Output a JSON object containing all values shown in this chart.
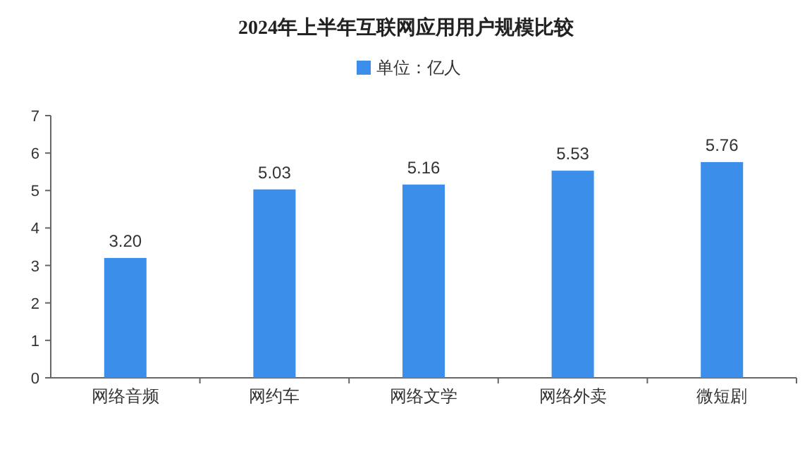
{
  "chart_data": {
    "type": "bar",
    "title": "2024年上半年互联网应用用户规模比较",
    "categories": [
      "网络音频",
      "网约车",
      "网络文学",
      "网络外卖",
      "微短剧"
    ],
    "series": [
      {
        "name": "单位：亿人",
        "color": "#3b8eea",
        "values": [
          3.2,
          5.03,
          5.16,
          5.53,
          5.76
        ],
        "value_labels": [
          "3.20",
          "5.03",
          "5.16",
          "5.53",
          "5.76"
        ]
      }
    ],
    "ylim": [
      0,
      7
    ],
    "yticks": [
      0,
      1,
      2,
      3,
      4,
      5,
      6,
      7
    ],
    "grid": false,
    "legend": "top"
  }
}
